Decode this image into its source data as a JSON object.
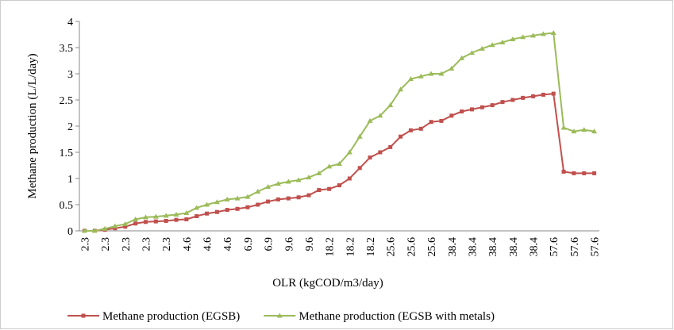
{
  "chart_data": {
    "type": "line",
    "x_label": "OLR (kgCOD/m3/day)",
    "y_label": "Methane production (L/L/day)",
    "categories": [
      "2.3",
      null,
      "2.3",
      null,
      "2.3",
      null,
      "2.3",
      null,
      "2.3",
      null,
      "4.6",
      null,
      "4.6",
      null,
      "4.6",
      null,
      "6.9",
      null,
      "6.9",
      null,
      "9.6",
      null,
      "9.6",
      null,
      "18.2",
      null,
      "18.2",
      null,
      "18.2",
      null,
      "25.6",
      null,
      "25.6",
      null,
      "25.6",
      null,
      "38.4",
      null,
      "38.4",
      null,
      "38.4",
      null,
      "38.4",
      null,
      "38.4",
      null,
      "57.6",
      null,
      "57.6",
      null,
      "57.6"
    ],
    "series": [
      {
        "name": "Methane production (EGSB)",
        "color": "#c0504d",
        "marker": "square",
        "values": [
          0,
          0,
          0.02,
          0.05,
          0.08,
          0.14,
          0.17,
          0.18,
          0.19,
          0.21,
          0.22,
          0.28,
          0.33,
          0.36,
          0.4,
          0.42,
          0.45,
          0.5,
          0.56,
          0.6,
          0.62,
          0.64,
          0.68,
          0.78,
          0.8,
          0.87,
          1.0,
          1.2,
          1.4,
          1.5,
          1.6,
          1.8,
          1.92,
          1.95,
          2.08,
          2.1,
          2.2,
          2.28,
          2.32,
          2.36,
          2.4,
          2.46,
          2.5,
          2.54,
          2.57,
          2.6,
          2.62,
          1.13,
          1.1,
          1.1,
          1.1
        ]
      },
      {
        "name": "Methane production (EGSB with metals)",
        "color": "#9bbb59",
        "marker": "triangle",
        "values": [
          0,
          0,
          0.04,
          0.09,
          0.13,
          0.22,
          0.26,
          0.27,
          0.29,
          0.31,
          0.34,
          0.44,
          0.5,
          0.55,
          0.6,
          0.62,
          0.65,
          0.75,
          0.84,
          0.9,
          0.94,
          0.97,
          1.02,
          1.1,
          1.23,
          1.28,
          1.5,
          1.8,
          2.1,
          2.2,
          2.4,
          2.7,
          2.9,
          2.95,
          3.0,
          3.0,
          3.1,
          3.3,
          3.4,
          3.48,
          3.55,
          3.6,
          3.66,
          3.7,
          3.73,
          3.76,
          3.78,
          1.97,
          1.9,
          1.93,
          1.9
        ]
      }
    ],
    "ylim": [
      0,
      4
    ],
    "yticks": [
      0,
      0.5,
      1,
      1.5,
      2,
      2.5,
      3,
      3.5,
      4
    ],
    "grid": false,
    "legend": "bottom"
  }
}
